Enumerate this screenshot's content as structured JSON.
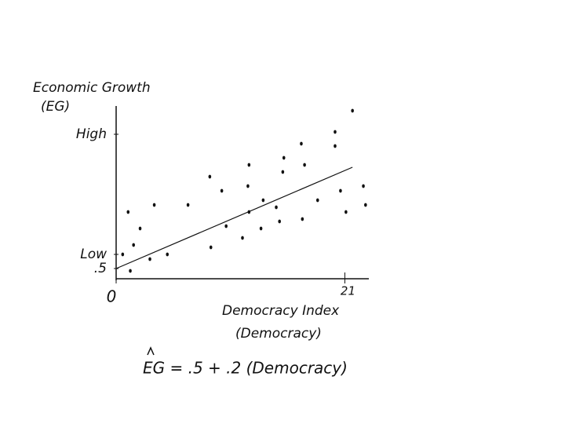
{
  "chart_data": {
    "type": "scatter",
    "y_label": [
      "Economic Growth",
      "(EG)"
    ],
    "x_label": [
      "Democracy Index",
      "(Democracy)"
    ],
    "equation": "EG = .5 + .2 (Democracy)",
    "xlim": [
      0,
      23.2
    ],
    "ylim": [
      0,
      7.4
    ],
    "xticks": [
      0,
      21
    ],
    "yticks": [
      {
        "value": 0.5,
        "label": ".5"
      },
      {
        "value": 1.1,
        "label": "Low"
      },
      {
        "value": 6.2,
        "label": "High"
      }
    ],
    "color": "#111111",
    "x": [
      1.1,
      2.2,
      1.6,
      0.6,
      1.3,
      3.1,
      4.7,
      3.5,
      6.6,
      8.6,
      9.7,
      8.7,
      10.1,
      11.6,
      12.2,
      12.1,
      12.2,
      13.3,
      13.5,
      15.0,
      14.7,
      15.4,
      17.0,
      17.3,
      15.3,
      17.1,
      18.5,
      20.1,
      20.1,
      20.6,
      21.1,
      21.7,
      22.7,
      22.9
    ],
    "values": [
      2.9,
      2.2,
      1.5,
      1.1,
      0.4,
      0.9,
      1.1,
      3.2,
      3.2,
      4.4,
      3.8,
      1.4,
      2.3,
      1.8,
      4.9,
      4.0,
      2.9,
      2.2,
      3.4,
      2.5,
      3.1,
      5.2,
      5.8,
      4.9,
      4.6,
      2.6,
      3.4,
      6.3,
      5.7,
      3.8,
      2.9,
      7.2,
      4.0,
      3.2
    ],
    "fit": {
      "x": [
        0,
        21.7
      ],
      "values": [
        0.5,
        4.8
      ]
    }
  }
}
